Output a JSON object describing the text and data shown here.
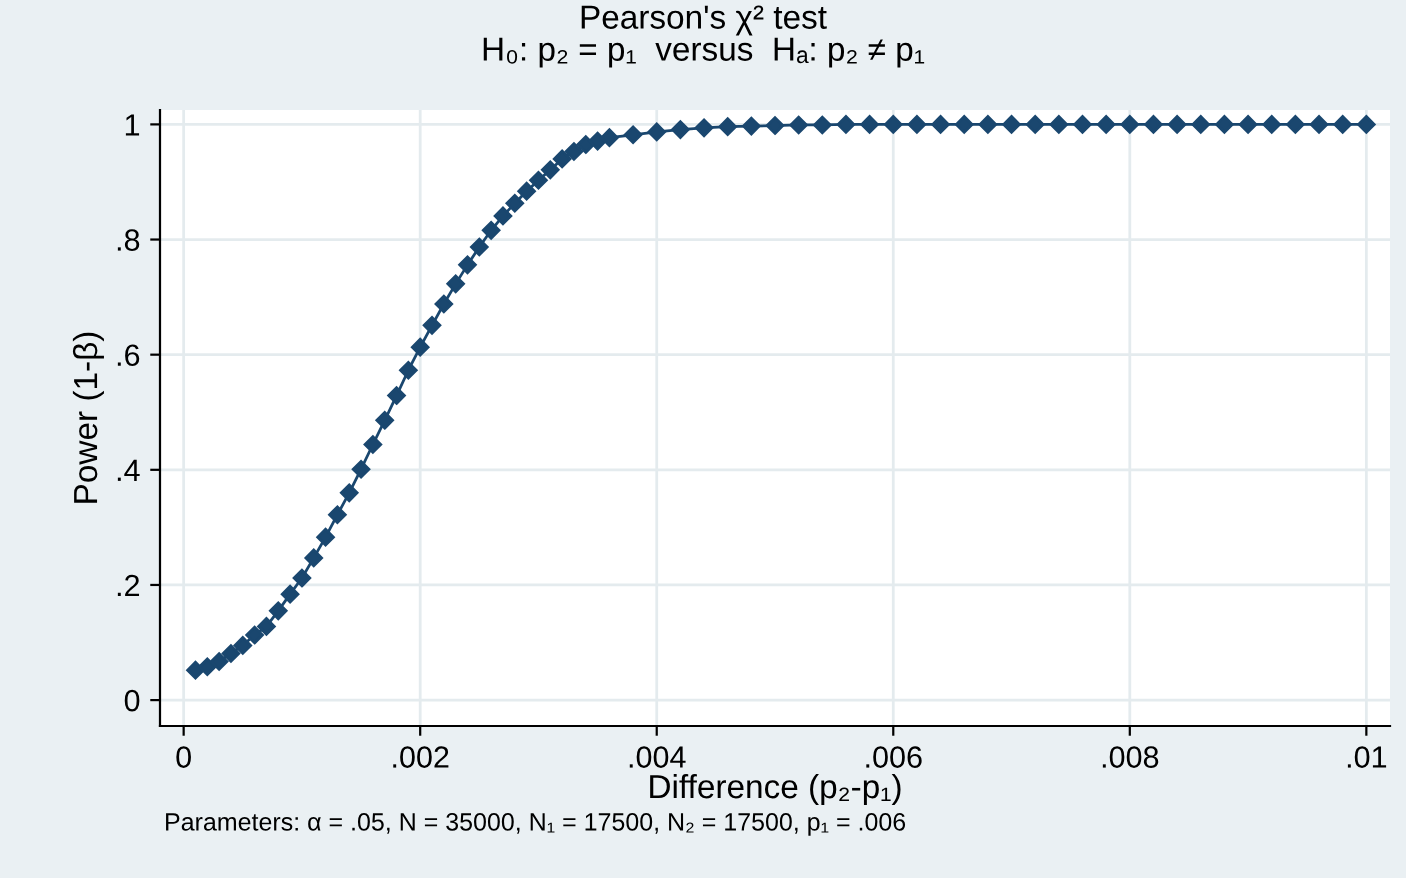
{
  "chart_data": {
    "type": "line",
    "title": "Pearson's χ² test",
    "subtitle": "H₀: p₂ = p₁  versus  Hₐ: p₂ ≠ p₁",
    "xlabel": "Difference (p₂-p₁)",
    "ylabel": "Power (1-β)",
    "annotations": [
      "Parameters: α = .05, N = 35000, N₁ = 17500, N₂ = 17500, p₁ = .006"
    ],
    "x": [
      0.0001,
      0.0002,
      0.0003,
      0.0004,
      0.0005,
      0.0006,
      0.0007,
      0.0008,
      0.0009,
      0.001,
      0.0011,
      0.0012,
      0.0013,
      0.0014,
      0.0015,
      0.0016,
      0.0017,
      0.0018,
      0.0019,
      0.002,
      0.0021,
      0.0022,
      0.0023,
      0.0024,
      0.0025,
      0.0026,
      0.0027,
      0.0028,
      0.0029,
      0.003,
      0.0031,
      0.0032,
      0.0033,
      0.0034,
      0.0035,
      0.0036,
      0.0038,
      0.004,
      0.0042,
      0.0044,
      0.0046,
      0.0048,
      0.005,
      0.0052,
      0.0054,
      0.0056,
      0.0058,
      0.006,
      0.0062,
      0.0064,
      0.0066,
      0.0068,
      0.007,
      0.0072,
      0.0074,
      0.0076,
      0.0078,
      0.008,
      0.0082,
      0.0084,
      0.0086,
      0.0088,
      0.009,
      0.0092,
      0.0094,
      0.0096,
      0.0098,
      0.01
    ],
    "series": [
      {
        "color": "#1a476f",
        "values": [
          0.052,
          0.058,
          0.067,
          0.081,
          0.095,
          0.113,
          0.128,
          0.155,
          0.184,
          0.212,
          0.247,
          0.283,
          0.322,
          0.36,
          0.401,
          0.444,
          0.486,
          0.529,
          0.573,
          0.613,
          0.651,
          0.688,
          0.723,
          0.756,
          0.787,
          0.816,
          0.841,
          0.863,
          0.884,
          0.903,
          0.921,
          0.94,
          0.953,
          0.965,
          0.971,
          0.977,
          0.982,
          0.987,
          0.991,
          0.994,
          0.996,
          0.997,
          0.998,
          0.999,
          0.999,
          1,
          1,
          1,
          1,
          1,
          1,
          1,
          1,
          1,
          1,
          1,
          1,
          1,
          1,
          1,
          1,
          1,
          1,
          1,
          1,
          1,
          1,
          1
        ]
      }
    ],
    "xlim": [
      -0.0002,
      0.0102
    ],
    "ylim": [
      -0.045,
      1.025
    ],
    "xticks": [
      0,
      {
        "value": 0.002,
        "label": ".002"
      },
      {
        "value": 0.004,
        "label": ".004"
      },
      {
        "value": 0.006,
        "label": ".006"
      },
      {
        "value": 0.008,
        "label": ".008"
      },
      {
        "value": 0.01,
        "label": ".01"
      }
    ],
    "yticks": [
      0,
      {
        "value": 0.2,
        "label": ".2"
      },
      {
        "value": 0.4,
        "label": ".4"
      },
      {
        "value": 0.6,
        "label": ".6"
      },
      {
        "value": 0.8,
        "label": ".8"
      },
      1
    ],
    "grid": true,
    "marker": "diamond",
    "line_style": "solid"
  }
}
